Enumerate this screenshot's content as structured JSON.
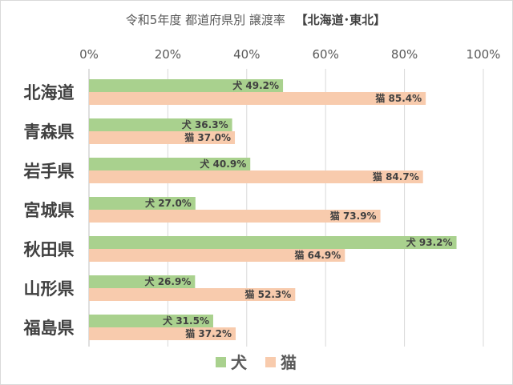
{
  "chart_data": {
    "type": "bar",
    "orientation": "horizontal",
    "title": "令和5年度 都道府県別 譲渡率",
    "title_suffix": "【北海道･東北】",
    "categories": [
      "北海道",
      "青森県",
      "岩手県",
      "宮城県",
      "秋田県",
      "山形県",
      "福島県"
    ],
    "series": [
      {
        "name": "犬",
        "color": "#a9d18e",
        "values": [
          49.2,
          36.3,
          40.9,
          27.0,
          93.2,
          26.9,
          31.5
        ]
      },
      {
        "name": "猫",
        "color": "#f8cbad",
        "values": [
          85.4,
          37.0,
          84.7,
          73.9,
          64.9,
          52.3,
          37.2
        ]
      }
    ],
    "xlim": [
      0,
      100
    ],
    "xticks": [
      "0%",
      "20%",
      "40%",
      "60%",
      "80%",
      "100%"
    ],
    "axis_position": "top",
    "grid": true,
    "legend_position": "bottom"
  }
}
